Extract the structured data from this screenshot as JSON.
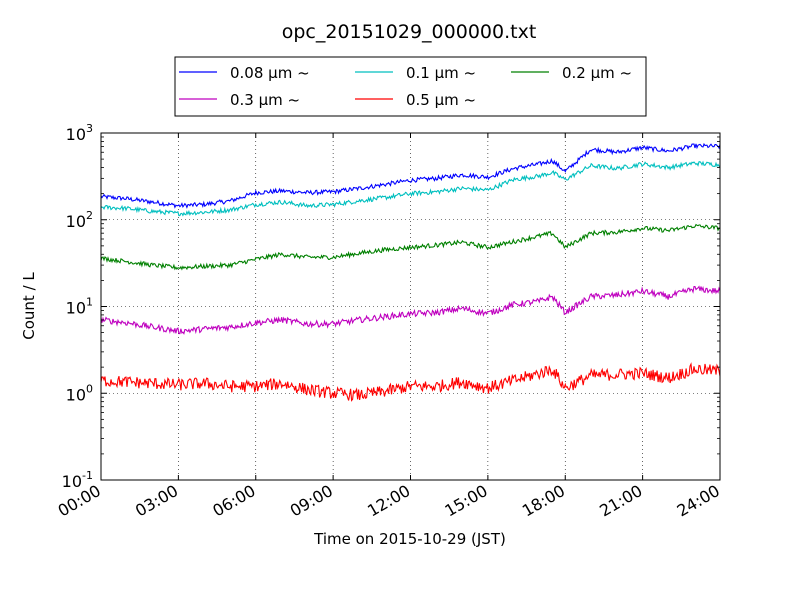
{
  "chart_data": {
    "type": "line",
    "title": "opc_20151029_000000.txt",
    "xlabel": "Time on 2015-10-29 (JST)",
    "ylabel": "Count / L",
    "x_units": "hours",
    "xlim": [
      0,
      24
    ],
    "ylim": [
      0.1,
      1000
    ],
    "yscale": "log",
    "grid": true,
    "legend_position": "top-center",
    "x_ticks": [
      {
        "value": 0,
        "label": "00:00"
      },
      {
        "value": 3,
        "label": "03:00"
      },
      {
        "value": 6,
        "label": "06:00"
      },
      {
        "value": 9,
        "label": "09:00"
      },
      {
        "value": 12,
        "label": "12:00"
      },
      {
        "value": 15,
        "label": "15:00"
      },
      {
        "value": 18,
        "label": "18:00"
      },
      {
        "value": 21,
        "label": "21:00"
      },
      {
        "value": 24,
        "label": "24:00"
      }
    ],
    "y_ticks": [
      {
        "value": 0.1,
        "base": "10",
        "exp": "-1"
      },
      {
        "value": 1,
        "base": "10",
        "exp": "0"
      },
      {
        "value": 10,
        "base": "10",
        "exp": "1"
      },
      {
        "value": 100,
        "base": "10",
        "exp": "2"
      },
      {
        "value": 1000,
        "base": "10",
        "exp": "3"
      }
    ],
    "x": [
      0,
      1,
      2,
      3,
      4,
      5,
      6,
      7,
      8,
      9,
      10,
      11,
      12,
      13,
      14,
      15,
      16,
      17,
      17.5,
      18,
      19,
      20,
      21,
      22,
      23,
      24
    ],
    "series": [
      {
        "name": "0.08 μm ~",
        "color": "#0000ff",
        "values": [
          185,
          175,
          160,
          145,
          150,
          165,
          205,
          215,
          205,
          210,
          230,
          255,
          285,
          300,
          330,
          310,
          390,
          440,
          480,
          360,
          650,
          600,
          680,
          620,
          710,
          700
        ]
      },
      {
        "name": "0.1 μm ~",
        "color": "#00bfbf",
        "values": [
          140,
          135,
          125,
          118,
          122,
          130,
          150,
          160,
          145,
          150,
          165,
          180,
          200,
          210,
          230,
          220,
          290,
          320,
          350,
          290,
          420,
          390,
          440,
          400,
          450,
          430
        ]
      },
      {
        "name": "0.2 μm ~",
        "color": "#008000",
        "values": [
          36,
          33,
          30,
          28,
          29,
          30,
          35,
          40,
          37,
          37,
          41,
          45,
          48,
          51,
          55,
          48,
          56,
          65,
          70,
          48,
          70,
          72,
          80,
          75,
          85,
          80
        ]
      },
      {
        "name": "0.3 μm ~",
        "color": "#bf00bf",
        "values": [
          7,
          6.5,
          5.8,
          5.2,
          5.5,
          5.8,
          6.5,
          7,
          6.3,
          6.3,
          7,
          7.6,
          8.2,
          8.5,
          9.5,
          8.3,
          10.5,
          11.5,
          13,
          8.5,
          13,
          13.5,
          15,
          13,
          16,
          15
        ]
      },
      {
        "name": "0.5 μm ~",
        "color": "#ff0000",
        "values": [
          1.4,
          1.35,
          1.3,
          1.25,
          1.3,
          1.2,
          1.2,
          1.3,
          1.1,
          1.0,
          0.95,
          1.05,
          1.2,
          1.2,
          1.35,
          1.15,
          1.4,
          1.7,
          1.9,
          1.15,
          1.6,
          1.65,
          1.7,
          1.5,
          1.9,
          1.8
        ]
      }
    ]
  }
}
